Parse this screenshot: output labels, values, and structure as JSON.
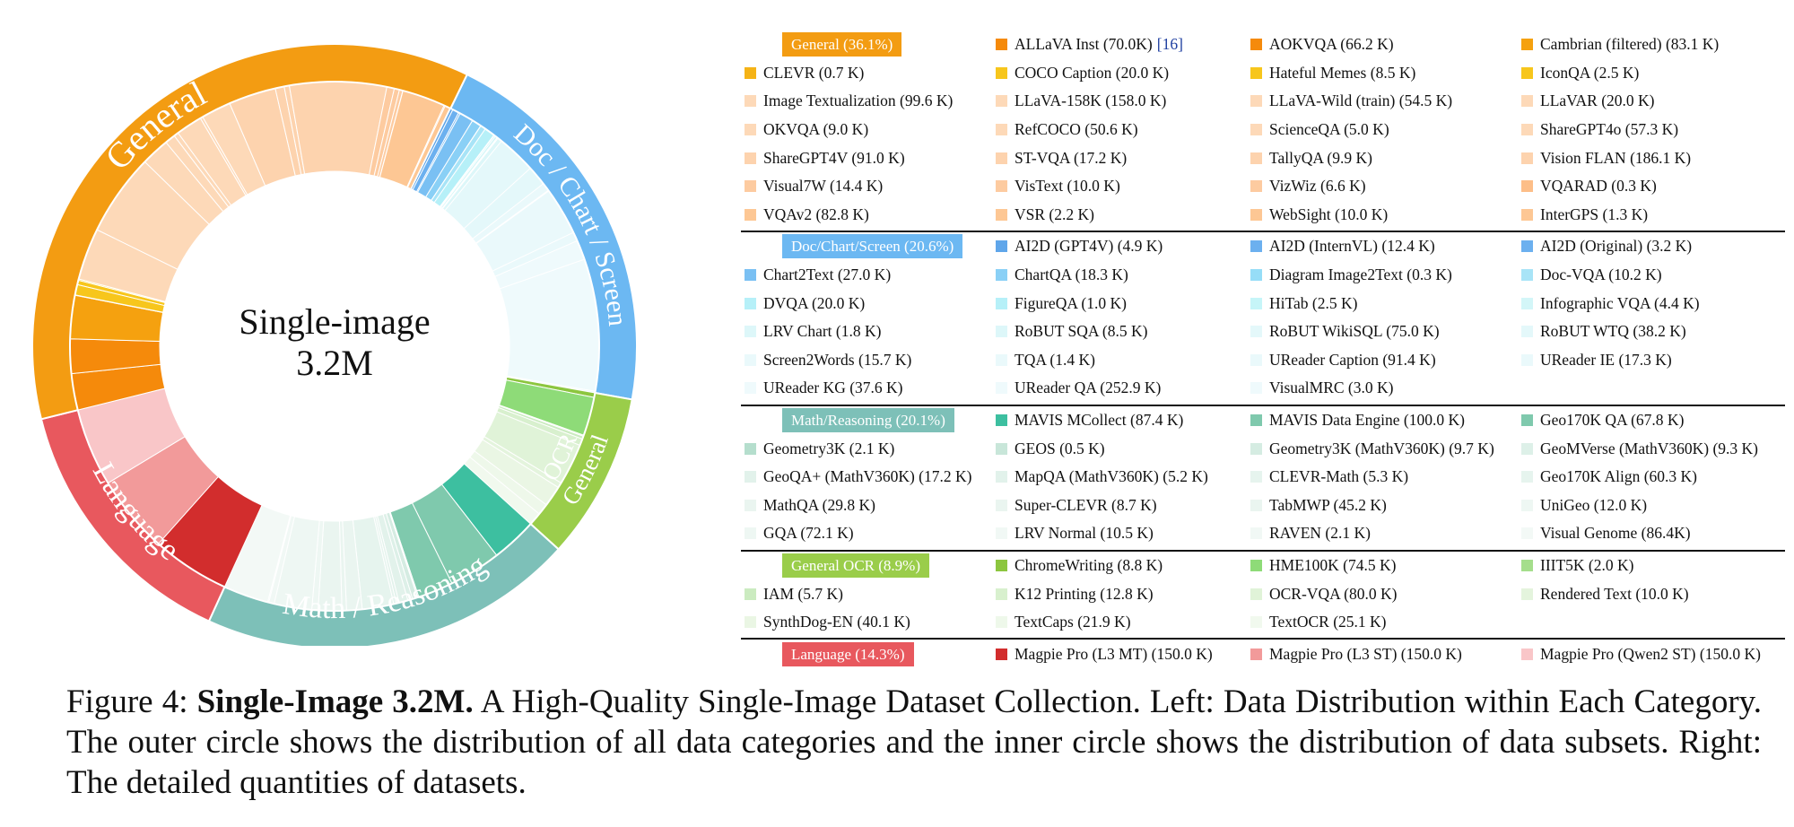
{
  "center": {
    "title": "Single-image",
    "subtitle": "3.2M"
  },
  "categories": [
    {
      "key": "general",
      "label": "General (36.1%)",
      "arc_label": "General",
      "percent": 36.1,
      "color": "#F39C12"
    },
    {
      "key": "doc",
      "label": "Doc/Chart/Screen (20.6%)",
      "arc_label": "Doc / Chart / Screen",
      "percent": 20.6,
      "color": "#6CB8F2"
    },
    {
      "key": "ocr",
      "label": "General OCR (8.9%)",
      "arc_label": "General OCR",
      "percent": 8.9,
      "color": "#9ACD4A"
    },
    {
      "key": "math",
      "label": "Math/Reasoning (20.1%)",
      "arc_label": "Math / Reasoning",
      "percent": 20.1,
      "color": "#7DC0B8"
    },
    {
      "key": "lang",
      "label": "Language (14.3%)",
      "arc_label": "Language",
      "percent": 14.3,
      "color": "#E8585E"
    }
  ],
  "groups": [
    {
      "key": "general",
      "items": [
        {
          "text": "ALLaVA Inst (70.0K)",
          "ref": "[16]",
          "color": "#F58A0B"
        },
        {
          "text": "AOKVQA (66.2 K)",
          "color": "#F58A0B"
        },
        {
          "text": "Cambrian (filtered) (83.1 K)",
          "color": "#F5A10F"
        },
        {
          "text": "CLEVR (0.7 K)",
          "color": "#F5B316"
        },
        {
          "text": "COCO Caption (20.0 K)",
          "color": "#F7C61C"
        },
        {
          "text": "Hateful Memes (8.5 K)",
          "color": "#F7C61C"
        },
        {
          "text": "IconQA (2.5 K)",
          "color": "#F7C61C"
        },
        {
          "text": "Image Textualization (99.6 K)",
          "color": "#FDD9B8"
        },
        {
          "text": "LLaVA-158K (158.0 K)",
          "color": "#FDD9B8"
        },
        {
          "text": "LLaVA-Wild (train) (54.5 K)",
          "color": "#FDD9B8"
        },
        {
          "text": "LLaVAR (20.0 K)",
          "color": "#FDD9B8"
        },
        {
          "text": "OKVQA (9.0 K)",
          "color": "#FDD9B8"
        },
        {
          "text": "RefCOCO (50.6 K)",
          "color": "#FDD9B8"
        },
        {
          "text": "ScienceQA (5.0 K)",
          "color": "#FDD9B8"
        },
        {
          "text": "ShareGPT4o (57.3 K)",
          "color": "#FDD9B8"
        },
        {
          "text": "ShareGPT4V (91.0 K)",
          "color": "#FDD3AE"
        },
        {
          "text": "ST-VQA (17.2 K)",
          "color": "#FDD3AE"
        },
        {
          "text": "TallyQA (9.9 K)",
          "color": "#FDD3AE"
        },
        {
          "text": "Vision FLAN (186.1 K)",
          "color": "#FDD3AE"
        },
        {
          "text": "Visual7W (14.4 K)",
          "color": "#FDCBA0"
        },
        {
          "text": "VisText (10.0 K)",
          "color": "#FDCBA0"
        },
        {
          "text": "VizWiz (6.6 K)",
          "color": "#FDCBA0"
        },
        {
          "text": "VQARAD (0.3 K)",
          "color": "#FDBE88"
        },
        {
          "text": "VQAv2 (82.8 K)",
          "color": "#FDC794"
        },
        {
          "text": "VSR (2.2 K)",
          "color": "#FDC794"
        },
        {
          "text": "WebSight (10.0 K)",
          "color": "#FDC794"
        },
        {
          "text": "InterGPS (1.3 K)",
          "color": "#FDC794"
        }
      ]
    },
    {
      "key": "doc",
      "items": [
        {
          "text": "AI2D (GPT4V) (4.9 K)",
          "color": "#5FA6EA"
        },
        {
          "text": "AI2D (InternVL) (12.4 K)",
          "color": "#6CB0EF"
        },
        {
          "text": "AI2D (Original) (3.2 K)",
          "color": "#6CB0EF"
        },
        {
          "text": "Chart2Text (27.0 K)",
          "color": "#7AC0F3"
        },
        {
          "text": "ChartQA (18.3 K)",
          "color": "#8AD0F6"
        },
        {
          "text": "Diagram Image2Text (0.3 K)",
          "color": "#96DDF7"
        },
        {
          "text": "Doc-VQA (10.2 K)",
          "color": "#A8E4F7"
        },
        {
          "text": "DVQA (20.0 K)",
          "color": "#B6F0F8"
        },
        {
          "text": "FigureQA (1.0 K)",
          "color": "#B6F0F8"
        },
        {
          "text": "HiTab (2.5 K)",
          "color": "#C6F5F8"
        },
        {
          "text": "Infographic VQA (4.4 K)",
          "color": "#D3F6F8"
        },
        {
          "text": "LRV Chart (1.8 K)",
          "color": "#DDF7F9"
        },
        {
          "text": "RoBUT SQA (8.5 K)",
          "color": "#DDF7F9"
        },
        {
          "text": "RoBUT WikiSQL (75.0 K)",
          "color": "#E4F8FA"
        },
        {
          "text": "RoBUT WTQ (38.2 K)",
          "color": "#E4F8FA"
        },
        {
          "text": "Screen2Words (15.7 K)",
          "color": "#EAF9FB"
        },
        {
          "text": "TQA (1.4 K)",
          "color": "#EAF9FB"
        },
        {
          "text": "UReader Caption (91.4 K)",
          "color": "#EAF9FB"
        },
        {
          "text": "UReader IE (17.3 K)",
          "color": "#EAF9FB"
        },
        {
          "text": "UReader KG (37.6 K)",
          "color": "#EFFAFC"
        },
        {
          "text": "UReader QA (252.9 K)",
          "color": "#EFFAFC"
        },
        {
          "text": "VisualMRC (3.0 K)",
          "color": "#EFFAFC"
        }
      ]
    },
    {
      "key": "math",
      "items": [
        {
          "text": "MAVIS MCollect (87.4 K)",
          "color": "#3DBFA0"
        },
        {
          "text": "MAVIS Data Engine (100.0 K)",
          "color": "#7FC9AD"
        },
        {
          "text": "Geo170K QA (67.8 K)",
          "color": "#7FC9AD"
        },
        {
          "text": "Geometry3K (2.1 K)",
          "color": "#B5DECD"
        },
        {
          "text": "GEOS (0.5 K)",
          "color": "#C8E6D9"
        },
        {
          "text": "Geometry3K (MathV360K) (9.7 K)",
          "color": "#D5ECE2"
        },
        {
          "text": "GeoMVerse (MathV360K) (9.3 K)",
          "color": "#DDF0E8"
        },
        {
          "text": "GeoQA+ (MathV360K) (17.2 K)",
          "color": "#E2F2EB"
        },
        {
          "text": "MapQA (MathV360K) (5.2 K)",
          "color": "#E2F2EB"
        },
        {
          "text": "CLEVR-Math (5.3 K)",
          "color": "#E6F4EE"
        },
        {
          "text": "Geo170K Align (60.3 K)",
          "color": "#E6F4EE"
        },
        {
          "text": "MathQA (29.8 K)",
          "color": "#EAF5F0"
        },
        {
          "text": "Super-CLEVR (8.7 K)",
          "color": "#EAF5F0"
        },
        {
          "text": "TabMWP (45.2 K)",
          "color": "#EAF5F0"
        },
        {
          "text": "UniGeo (12.0 K)",
          "color": "#EEF7F3"
        },
        {
          "text": "GQA (72.1 K)",
          "color": "#EEF7F3"
        },
        {
          "text": "LRV Normal (10.5 K)",
          "color": "#F1F8F5"
        },
        {
          "text": "RAVEN (2.1 K)",
          "color": "#F1F8F5"
        },
        {
          "text": "Visual Genome (86.4K)",
          "color": "#F3F9F6"
        }
      ]
    },
    {
      "key": "ocr",
      "items": [
        {
          "text": "ChromeWriting (8.8 K)",
          "color": "#8CC63F"
        },
        {
          "text": "HME100K (74.5 K)",
          "color": "#8EDB78"
        },
        {
          "text": "IIIT5K (2.0 K)",
          "color": "#A5DE8C"
        },
        {
          "text": "IAM (5.7 K)",
          "color": "#CBEBC0"
        },
        {
          "text": "K12 Printing (12.8 K)",
          "color": "#D8F0CE"
        },
        {
          "text": "OCR-VQA (80.0 K)",
          "color": "#E0F3D8"
        },
        {
          "text": "Rendered Text (10.0 K)",
          "color": "#E4F4DD"
        },
        {
          "text": "SynthDog-EN (40.1 K)",
          "color": "#EAF6E4"
        },
        {
          "text": "TextCaps (21.9 K)",
          "color": "#EEF8EA"
        },
        {
          "text": "TextOCR (25.1 K)",
          "color": "#F1F9EE"
        }
      ]
    },
    {
      "key": "lang",
      "items": [
        {
          "text": "Magpie Pro (L3 MT) (150.0 K)",
          "color": "#D22D2D"
        },
        {
          "text": "Magpie Pro (L3 ST) (150.0 K)",
          "color": "#F29A9A"
        },
        {
          "text": "Magpie Pro (Qwen2 ST) (150.0 K)",
          "color": "#F9C6C8"
        }
      ]
    }
  ],
  "caption": {
    "figure_label": "Figure 4:",
    "bold_title": "Single-Image 3.2M.",
    "text": "A High-Quality Single-Image Dataset Collection. Left: Data Distribution within Each Category. The outer circle shows the distribution of all data categories and the inner circle shows the distribution of data subsets. Right: The detailed quantities of datasets."
  }
}
